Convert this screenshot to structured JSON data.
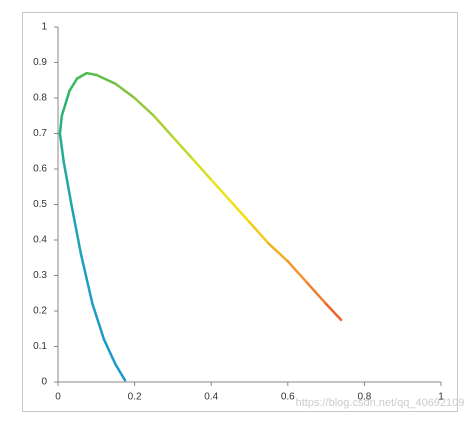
{
  "chart_data": {
    "type": "line",
    "x": [
      0.175,
      0.15,
      0.12,
      0.09,
      0.06,
      0.035,
      0.015,
      0.005,
      0.01,
      0.03,
      0.05,
      0.075,
      0.1,
      0.15,
      0.2,
      0.25,
      0.3,
      0.35,
      0.4,
      0.45,
      0.5,
      0.55,
      0.6,
      0.65,
      0.7,
      0.739
    ],
    "values": [
      0.005,
      0.05,
      0.12,
      0.22,
      0.36,
      0.5,
      0.62,
      0.7,
      0.75,
      0.82,
      0.855,
      0.87,
      0.865,
      0.84,
      0.8,
      0.75,
      0.69,
      0.63,
      0.57,
      0.51,
      0.45,
      0.39,
      0.34,
      0.28,
      0.22,
      0.175
    ],
    "colors": [
      "#1a9ac9",
      "#1a9ac9",
      "#1b9cc6",
      "#1c9fc0",
      "#1ea3b5",
      "#20a8a5",
      "#22ad92",
      "#25b27f",
      "#2ab56f",
      "#35b863",
      "#45ba55",
      "#55bd4c",
      "#66bf46",
      "#7fc242",
      "#95c83e",
      "#acd037",
      "#c2d72e",
      "#d8de22",
      "#ebe316",
      "#f3df12",
      "#f4c91c",
      "#f3b024",
      "#f2962b",
      "#ee7d2e",
      "#ea652e",
      "#e8502c"
    ],
    "xlim": [
      0,
      1
    ],
    "ylim": [
      0,
      1
    ],
    "xticks": [
      0,
      0.2,
      0.4,
      0.6,
      0.8,
      1
    ],
    "yticks": [
      0,
      0.1,
      0.2,
      0.3,
      0.4,
      0.5,
      0.6,
      0.7,
      0.8,
      0.9,
      1
    ],
    "watermark": "https://blog.csdn.net/qq_40692109"
  }
}
